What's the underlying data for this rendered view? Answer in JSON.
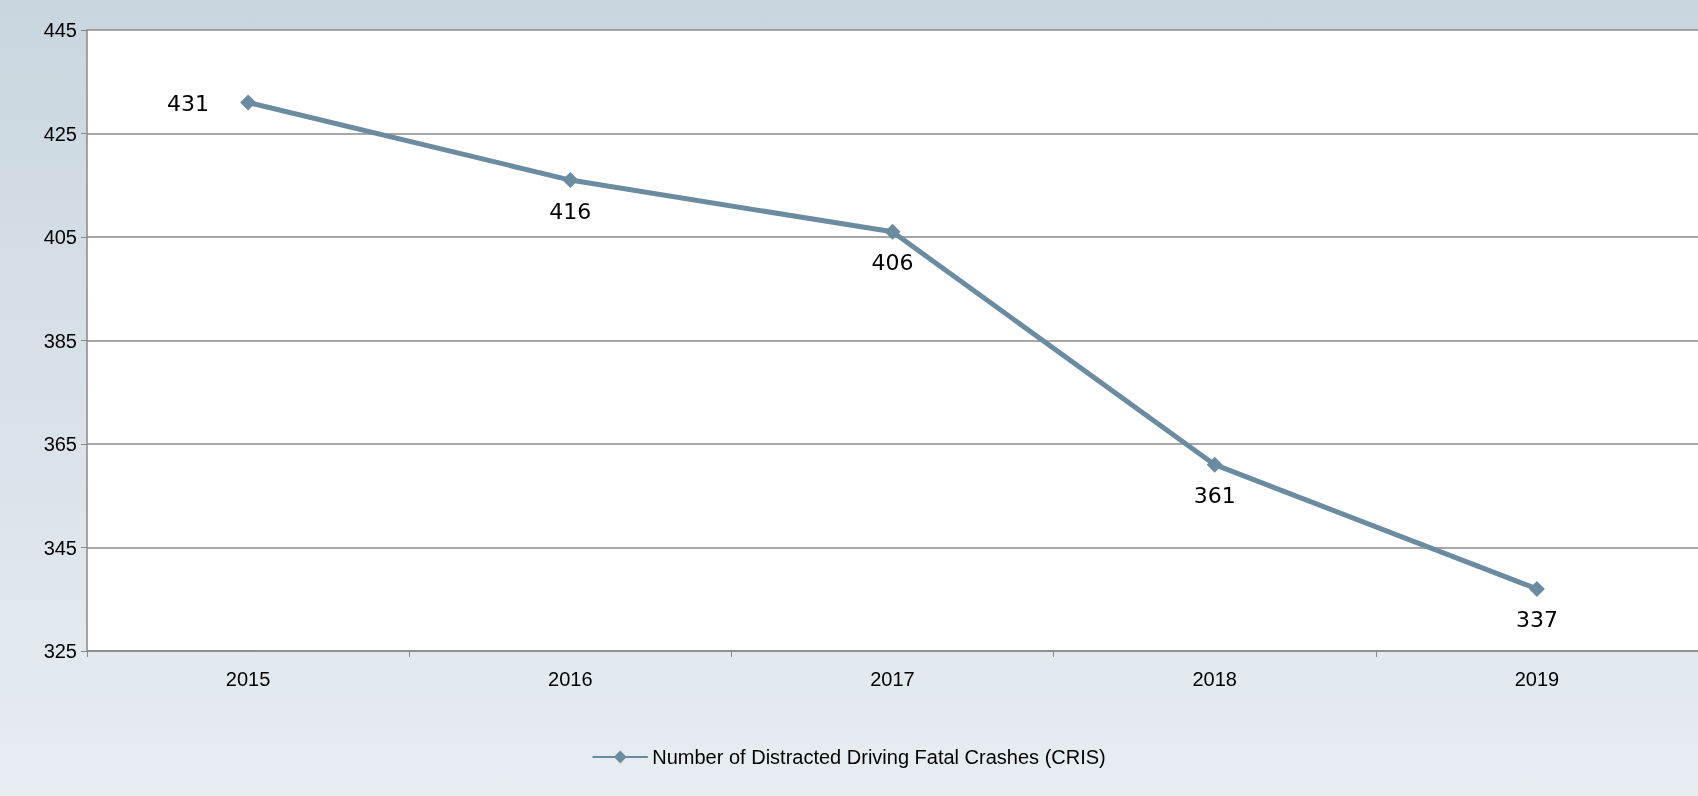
{
  "chart_data": {
    "type": "line",
    "categories": [
      "2015",
      "2016",
      "2017",
      "2018",
      "2019"
    ],
    "series": [
      {
        "name": "Number of Distracted Driving Fatal Crashes (CRIS)",
        "color": "#6b8ca0",
        "values": [
          431,
          416,
          406,
          361,
          337
        ]
      }
    ],
    "ylim": [
      325,
      445
    ],
    "yticks": [
      325,
      345,
      365,
      385,
      405,
      425,
      445
    ],
    "grid": "y",
    "legend": "bottom",
    "marker": "diamond",
    "line_style": "solid",
    "data_labels": true
  }
}
